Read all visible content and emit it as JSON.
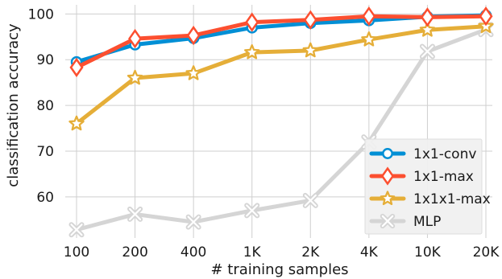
{
  "chart_data": {
    "type": "line",
    "title": "",
    "xlabel": "# training samples",
    "ylabel": "classification accuracy",
    "categories": [
      "100",
      "200",
      "400",
      "1K",
      "2K",
      "4K",
      "10K",
      "20K"
    ],
    "yticks": [
      60,
      70,
      80,
      90,
      100
    ],
    "ylim": [
      51,
      102
    ],
    "grid": true,
    "legend_position": "bottom-right",
    "series": [
      {
        "name": "MLP",
        "color": "#d5d5d5",
        "marker": "x",
        "values": [
          52.8,
          56.2,
          54.5,
          57.0,
          59.2,
          72.0,
          91.8,
          96.6
        ]
      },
      {
        "name": "1x1x1-max",
        "color": "#e5ae38",
        "marker": "star",
        "values": [
          76.0,
          86.0,
          87.0,
          91.6,
          92.0,
          94.4,
          96.5,
          97.3
        ]
      },
      {
        "name": "1x1-conv",
        "color": "#008fd5",
        "marker": "circle",
        "values": [
          89.5,
          93.3,
          94.7,
          97.0,
          98.0,
          98.6,
          99.4,
          99.7
        ]
      },
      {
        "name": "1x1-max",
        "color": "#fc4f30",
        "marker": "diamond",
        "values": [
          88.3,
          94.6,
          95.3,
          98.2,
          98.7,
          99.5,
          99.3,
          99.5
        ]
      }
    ],
    "legend_order": [
      "1x1-conv",
      "1x1-max",
      "1x1x1-max",
      "MLP"
    ]
  }
}
